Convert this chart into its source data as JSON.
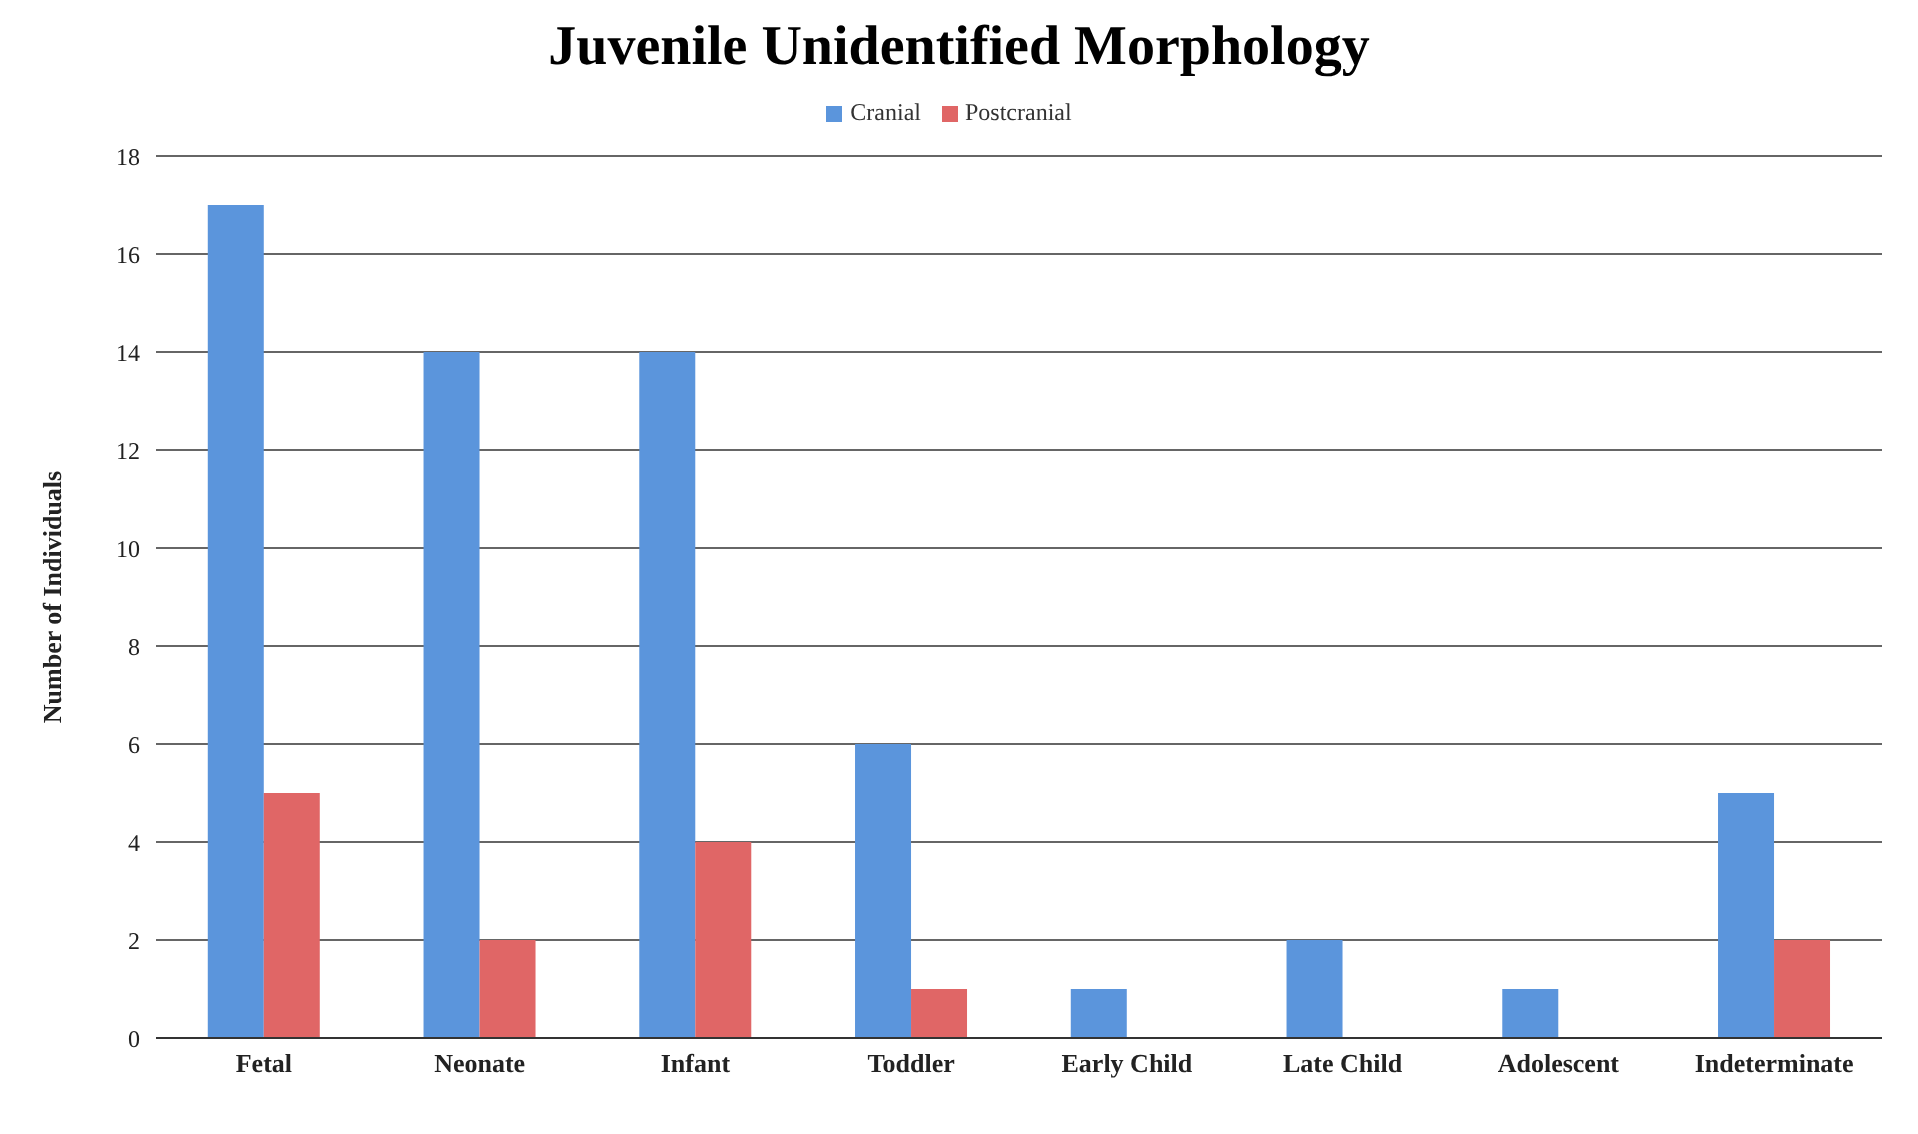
{
  "chart_data": {
    "type": "bar",
    "title": "Juvenile Unidentified Morphology",
    "ylabel": "Number of Individuals",
    "categories": [
      "Fetal",
      "Neonate",
      "Infant",
      "Toddler",
      "Early Child",
      "Late Child",
      "Adolescent",
      "Indeterminate"
    ],
    "series": [
      {
        "name": "Cranial",
        "color": "#5b95dc",
        "values": [
          17,
          14,
          14,
          6,
          1,
          2,
          1,
          5
        ]
      },
      {
        "name": "Postcranial",
        "color": "#e06666",
        "values": [
          5,
          2,
          4,
          1,
          0,
          0,
          0,
          2
        ]
      }
    ],
    "ylim": [
      0,
      18
    ],
    "yticks": [
      0,
      2,
      4,
      6,
      8,
      10,
      12,
      14,
      16,
      18
    ],
    "grid": "y",
    "legend": "top"
  }
}
